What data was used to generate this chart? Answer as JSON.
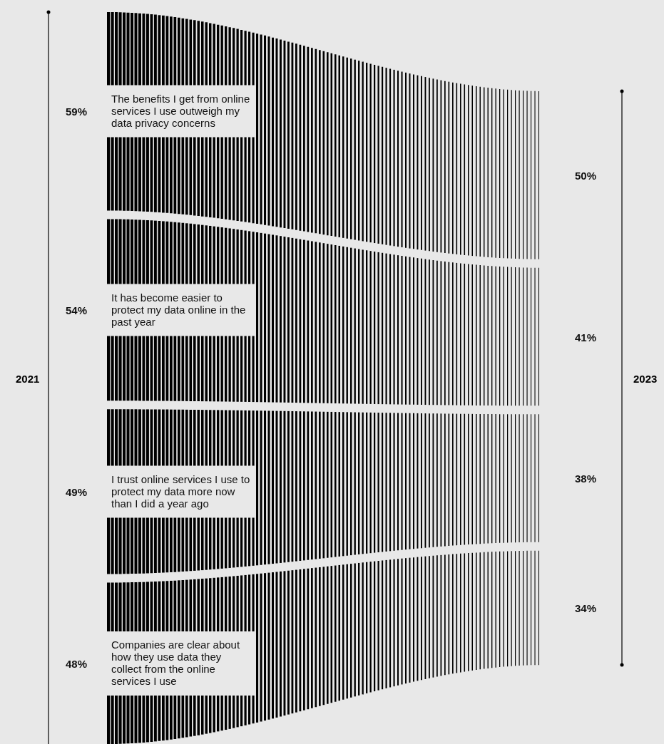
{
  "chart_data": {
    "type": "other",
    "categories": [
      "The benefits I get from online services I use outweigh my data privacy concerns",
      "It has become easier to protect my data online in the past year",
      "I trust online services I use to protect my data more now than I did a year ago",
      "Companies are clear about how they use data they collect from the online services I use"
    ],
    "series": [
      {
        "name": "2021",
        "color": "#000000",
        "values": [
          59,
          54,
          49,
          48
        ],
        "value_labels": [
          "59%",
          "54%",
          "49%",
          "48%"
        ]
      },
      {
        "name": "2023",
        "color": "#000000",
        "values": [
          50,
          41,
          38,
          34
        ],
        "value_labels": [
          "50%",
          "41%",
          "38%",
          "34%"
        ]
      }
    ]
  }
}
